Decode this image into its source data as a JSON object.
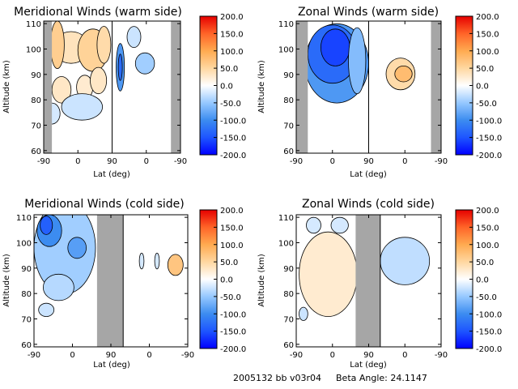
{
  "footer": {
    "id_text": "2005132 bb v03r04",
    "beta_text": "Beta Angle: 24.1147"
  },
  "colors": {
    "shade": "#a6a6a6",
    "frame": "#000000",
    "colorbar_stops": [
      {
        "v": -200,
        "c": "#0000ff"
      },
      {
        "v": -150,
        "c": "#1e55ff"
      },
      {
        "v": -100,
        "c": "#3c8cf0"
      },
      {
        "v": -50,
        "c": "#96c8ff"
      },
      {
        "v": 0,
        "c": "#ffffff"
      },
      {
        "v": 50,
        "c": "#ffd7a0"
      },
      {
        "v": 100,
        "c": "#ffaa50"
      },
      {
        "v": 150,
        "c": "#ff6428"
      },
      {
        "v": 200,
        "c": "#e60000"
      }
    ]
  },
  "chart_data": [
    {
      "type": "heatmap",
      "title": "Meridional Winds (warm side)",
      "xlabel": "Lat (deg)",
      "ylabel": "Altitude (km)",
      "xticks": [
        "-90",
        "0",
        "90",
        "0",
        "-90"
      ],
      "yticks": [
        "60",
        "70",
        "80",
        "90",
        "100",
        "110"
      ],
      "ylim": [
        59,
        111
      ],
      "colorbar_ticks": [
        "200.0",
        "150.0",
        "100.0",
        "50.0",
        "0.0",
        "-50.0",
        "-100.0",
        "-150.0",
        "-200.0"
      ],
      "colorbar_range": [
        -200,
        200
      ],
      "shaded_x_ranges": [
        [
          0.0,
          0.06
        ],
        [
          0.93,
          1.0
        ]
      ],
      "divider_x": 0.5,
      "blobs": [
        {
          "x": 0.2,
          "y": 0.2,
          "rx": 0.13,
          "ry": 0.12,
          "v": 35
        },
        {
          "x": 0.36,
          "y": 0.22,
          "rx": 0.11,
          "ry": 0.16,
          "v": 55
        },
        {
          "x": 0.44,
          "y": 0.18,
          "rx": 0.05,
          "ry": 0.14,
          "v": 45
        },
        {
          "x": 0.1,
          "y": 0.18,
          "rx": 0.05,
          "ry": 0.18,
          "v": 60
        },
        {
          "x": 0.13,
          "y": 0.52,
          "rx": 0.07,
          "ry": 0.1,
          "v": 30
        },
        {
          "x": 0.3,
          "y": 0.5,
          "rx": 0.06,
          "ry": 0.09,
          "v": 25
        },
        {
          "x": 0.4,
          "y": 0.45,
          "rx": 0.06,
          "ry": 0.1,
          "v": 30
        },
        {
          "x": 0.28,
          "y": 0.65,
          "rx": 0.15,
          "ry": 0.1,
          "v": -25
        },
        {
          "x": 0.06,
          "y": 0.7,
          "rx": 0.06,
          "ry": 0.08,
          "v": -20
        },
        {
          "x": 0.56,
          "y": 0.35,
          "rx": 0.03,
          "ry": 0.18,
          "v": -90
        },
        {
          "x": 0.56,
          "y": 0.35,
          "rx": 0.015,
          "ry": 0.1,
          "v": -130
        },
        {
          "x": 0.74,
          "y": 0.32,
          "rx": 0.07,
          "ry": 0.08,
          "v": -45
        },
        {
          "x": 0.66,
          "y": 0.12,
          "rx": 0.05,
          "ry": 0.08,
          "v": -25
        }
      ]
    },
    {
      "type": "heatmap",
      "title": "Zonal Winds (warm side)",
      "xlabel": "Lat (deg)",
      "ylabel": "Altitude (km)",
      "xticks": [
        "-90",
        "0",
        "90",
        "0",
        "-90"
      ],
      "yticks": [
        "60",
        "70",
        "80",
        "90",
        "100",
        "110"
      ],
      "ylim": [
        59,
        111
      ],
      "colorbar_ticks": [
        "200.0",
        "150.0",
        "100.0",
        "50.0",
        "0.0",
        "-50.0",
        "-100.0",
        "-150.0",
        "-200.0"
      ],
      "colorbar_range": [
        -200,
        200
      ],
      "shaded_x_ranges": [
        [
          0.0,
          0.08
        ],
        [
          0.93,
          1.0
        ]
      ],
      "divider_x": 0.5,
      "blobs": [
        {
          "x": 0.28,
          "y": 0.32,
          "rx": 0.22,
          "ry": 0.3,
          "v": -90
        },
        {
          "x": 0.25,
          "y": 0.25,
          "rx": 0.17,
          "ry": 0.22,
          "v": -130
        },
        {
          "x": 0.27,
          "y": 0.2,
          "rx": 0.1,
          "ry": 0.14,
          "v": -160
        },
        {
          "x": 0.42,
          "y": 0.3,
          "rx": 0.06,
          "ry": 0.25,
          "v": -60
        },
        {
          "x": 0.72,
          "y": 0.4,
          "rx": 0.1,
          "ry": 0.12,
          "v": 45
        },
        {
          "x": 0.74,
          "y": 0.4,
          "rx": 0.06,
          "ry": 0.06,
          "v": 80
        }
      ]
    },
    {
      "type": "heatmap",
      "title": "Meridional Winds (cold side)",
      "xlabel": "Lat (deg)",
      "ylabel": "Altitude (km)",
      "xticks": [
        "-90",
        "0",
        "90",
        "0",
        "-90"
      ],
      "yticks": [
        "60",
        "70",
        "80",
        "90",
        "100",
        "110"
      ],
      "ylim": [
        59,
        111
      ],
      "colorbar_ticks": [
        "200.0",
        "150.0",
        "100.0",
        "50.0",
        "0.0",
        "-50.0",
        "-100.0",
        "-150.0",
        "-200.0"
      ],
      "colorbar_range": [
        -200,
        200
      ],
      "shaded_x_ranges": [
        [
          0.41,
          0.58
        ]
      ],
      "divider_x": 0.58,
      "blobs": [
        {
          "x": 0.2,
          "y": 0.25,
          "rx": 0.2,
          "ry": 0.35,
          "v": -45
        },
        {
          "x": 0.1,
          "y": 0.12,
          "rx": 0.08,
          "ry": 0.12,
          "v": -100
        },
        {
          "x": 0.08,
          "y": 0.08,
          "rx": 0.04,
          "ry": 0.07,
          "v": -140
        },
        {
          "x": 0.28,
          "y": 0.25,
          "rx": 0.06,
          "ry": 0.08,
          "v": -85
        },
        {
          "x": 0.16,
          "y": 0.55,
          "rx": 0.1,
          "ry": 0.1,
          "v": -35
        },
        {
          "x": 0.08,
          "y": 0.72,
          "rx": 0.05,
          "ry": 0.05,
          "v": -25
        },
        {
          "x": 0.92,
          "y": 0.38,
          "rx": 0.05,
          "ry": 0.08,
          "v": 70
        },
        {
          "x": 0.7,
          "y": 0.35,
          "rx": 0.015,
          "ry": 0.06,
          "v": -20
        },
        {
          "x": 0.8,
          "y": 0.35,
          "rx": 0.015,
          "ry": 0.06,
          "v": -20
        }
      ]
    },
    {
      "type": "heatmap",
      "title": "Zonal Winds (cold side)",
      "xlabel": "Lat (deg)",
      "ylabel": "Altitude (km)",
      "xticks": [
        "-90",
        "0",
        "90",
        "0",
        "-90"
      ],
      "yticks": [
        "60",
        "70",
        "80",
        "90",
        "100",
        "110"
      ],
      "ylim": [
        59,
        111
      ],
      "colorbar_ticks": [
        "200.0",
        "150.0",
        "100.0",
        "50.0",
        "0.0",
        "-50.0",
        "-100.0",
        "-150.0",
        "-200.0"
      ],
      "colorbar_range": [
        -200,
        200
      ],
      "shaded_x_ranges": [
        [
          0.41,
          0.58
        ]
      ],
      "divider_x": 0.58,
      "blobs": [
        {
          "x": 0.22,
          "y": 0.45,
          "rx": 0.2,
          "ry": 0.32,
          "v": 25
        },
        {
          "x": 0.12,
          "y": 0.08,
          "rx": 0.05,
          "ry": 0.06,
          "v": -20
        },
        {
          "x": 0.3,
          "y": 0.08,
          "rx": 0.06,
          "ry": 0.06,
          "v": -20
        },
        {
          "x": 0.05,
          "y": 0.75,
          "rx": 0.03,
          "ry": 0.05,
          "v": -25
        },
        {
          "x": 0.75,
          "y": 0.35,
          "rx": 0.17,
          "ry": 0.18,
          "v": -30
        }
      ]
    }
  ]
}
